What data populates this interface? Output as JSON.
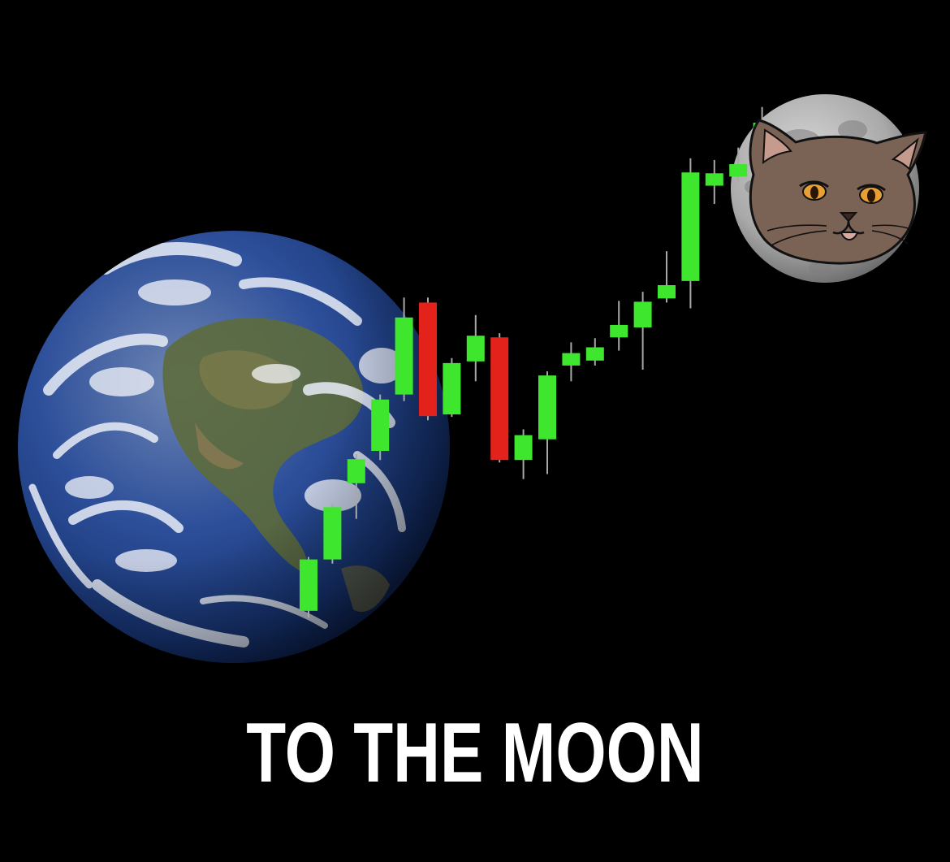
{
  "caption": "TO THE MOON",
  "colors": {
    "background": "#000000",
    "up_candle": "#3ee62e",
    "down_candle": "#e4221c",
    "wick": "#a8a8a8",
    "caption": "#ffffff",
    "earth_ocean": "#1f3f8c",
    "moon_surface": "#b4b4b4",
    "cat_fur": "#7a6355"
  },
  "illustration": {
    "planet": "earth",
    "satellite": "moon",
    "character": "cat-face",
    "chart_style": "candlestick"
  },
  "chart_data": {
    "type": "candlestick",
    "candles": [
      {
        "open": 0.8,
        "close": 7.0,
        "low": 0.0,
        "high": 7.3
      },
      {
        "open": 7.0,
        "close": 13.3,
        "low": 6.5,
        "high": 13.7
      },
      {
        "open": 16.2,
        "close": 19.1,
        "low": 11.9,
        "high": 19.7
      },
      {
        "open": 20.1,
        "close": 26.3,
        "low": 19.0,
        "high": 26.9
      },
      {
        "open": 26.9,
        "close": 36.2,
        "low": 26.1,
        "high": 38.6
      },
      {
        "open": 38.0,
        "close": 24.3,
        "low": 23.8,
        "high": 38.6
      },
      {
        "open": 24.5,
        "close": 30.7,
        "low": 24.2,
        "high": 31.3
      },
      {
        "open": 30.9,
        "close": 34.0,
        "low": 28.5,
        "high": 36.5
      },
      {
        "open": 33.8,
        "close": 19.0,
        "low": 18.7,
        "high": 34.3
      },
      {
        "open": 19.0,
        "close": 22.0,
        "low": 16.7,
        "high": 22.7
      },
      {
        "open": 21.5,
        "close": 29.2,
        "low": 17.3,
        "high": 29.7
      },
      {
        "open": 30.4,
        "close": 31.9,
        "low": 28.5,
        "high": 33.2
      },
      {
        "open": 31.0,
        "close": 32.6,
        "low": 30.4,
        "high": 33.7
      },
      {
        "open": 33.8,
        "close": 35.3,
        "low": 32.2,
        "high": 38.2
      },
      {
        "open": 35.0,
        "close": 38.1,
        "low": 29.9,
        "high": 39.3
      },
      {
        "open": 38.5,
        "close": 40.1,
        "low": 38.0,
        "high": 44.2
      },
      {
        "open": 40.6,
        "close": 53.7,
        "low": 37.3,
        "high": 55.4
      },
      {
        "open": 52.1,
        "close": 53.6,
        "low": 49.9,
        "high": 55.2
      },
      {
        "open": 53.2,
        "close": 54.7,
        "low": 52.6,
        "high": 56.7
      },
      {
        "open": 56.3,
        "close": 59.7,
        "low": 55.6,
        "high": 61.6
      }
    ]
  }
}
